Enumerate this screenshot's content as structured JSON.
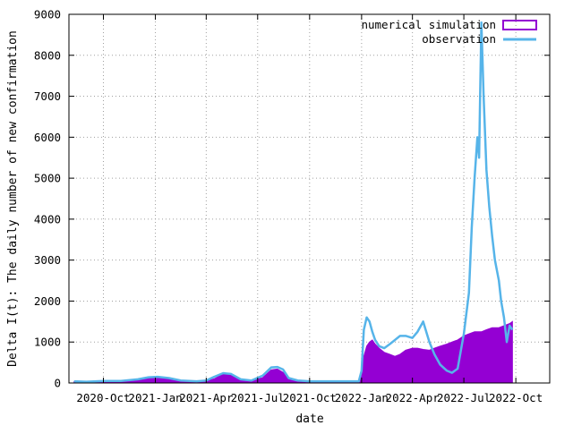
{
  "chart_data": {
    "type": "area",
    "title": "",
    "xlabel": "date",
    "ylabel": "Delta I(t): The daily number of new confirmation",
    "ylim": [
      0,
      9000
    ],
    "xlim": [
      "2020-08-01",
      "2022-11-30"
    ],
    "grid": true,
    "legend_position": "top-right",
    "xticks": [
      {
        "date": "2020-10-01",
        "label": "2020-Oct"
      },
      {
        "date": "2021-01-01",
        "label": "2021-Jan"
      },
      {
        "date": "2021-04-01",
        "label": "2021-Apr"
      },
      {
        "date": "2021-07-01",
        "label": "2021-Jul"
      },
      {
        "date": "2021-10-01",
        "label": "2021-Oct"
      },
      {
        "date": "2022-01-01",
        "label": "2022-Jan"
      },
      {
        "date": "2022-04-01",
        "label": "2022-Apr"
      },
      {
        "date": "2022-07-01",
        "label": "2022-Jul"
      },
      {
        "date": "2022-10-01",
        "label": "2022-Oct"
      }
    ],
    "yticks": [
      0,
      1000,
      2000,
      3000,
      4000,
      5000,
      6000,
      7000,
      8000,
      9000
    ],
    "series": [
      {
        "name": "numerical simulation",
        "style": "filled-bars",
        "color": "#9400d3",
        "x": [
          "2020-08-10",
          "2020-09-01",
          "2020-10-01",
          "2020-11-01",
          "2020-12-01",
          "2020-12-20",
          "2021-01-05",
          "2021-01-25",
          "2021-02-15",
          "2021-03-15",
          "2021-04-01",
          "2021-04-15",
          "2021-05-01",
          "2021-05-15",
          "2021-06-01",
          "2021-06-20",
          "2021-07-10",
          "2021-07-25",
          "2021-08-05",
          "2021-08-15",
          "2021-08-25",
          "2021-09-10",
          "2021-10-01",
          "2021-11-01",
          "2021-12-01",
          "2021-12-27",
          "2022-01-01",
          "2022-01-05",
          "2022-01-10",
          "2022-01-15",
          "2022-01-20",
          "2022-01-25",
          "2022-02-01",
          "2022-02-10",
          "2022-02-20",
          "2022-03-01",
          "2022-03-10",
          "2022-03-20",
          "2022-04-01",
          "2022-04-10",
          "2022-04-20",
          "2022-05-01",
          "2022-05-10",
          "2022-05-20",
          "2022-06-01",
          "2022-06-10",
          "2022-06-20",
          "2022-07-01",
          "2022-07-10",
          "2022-07-20",
          "2022-08-01",
          "2022-08-10",
          "2022-08-20",
          "2022-09-01",
          "2022-09-10",
          "2022-09-20",
          "2022-09-25"
        ],
        "values": [
          30,
          30,
          40,
          40,
          60,
          120,
          130,
          110,
          60,
          40,
          50,
          100,
          220,
          200,
          80,
          60,
          130,
          320,
          340,
          260,
          120,
          60,
          40,
          40,
          40,
          40,
          200,
          650,
          900,
          1000,
          1050,
          950,
          850,
          750,
          700,
          650,
          700,
          800,
          850,
          850,
          820,
          800,
          850,
          900,
          950,
          1000,
          1050,
          1150,
          1200,
          1250,
          1250,
          1300,
          1350,
          1350,
          1400,
          1450,
          1500
        ]
      },
      {
        "name": "observation",
        "style": "line",
        "color": "#56b4e9",
        "x": [
          "2020-08-10",
          "2020-09-01",
          "2020-10-01",
          "2020-11-01",
          "2020-12-01",
          "2020-12-20",
          "2021-01-05",
          "2021-01-25",
          "2021-02-15",
          "2021-03-15",
          "2021-04-01",
          "2021-04-15",
          "2021-05-01",
          "2021-05-15",
          "2021-06-01",
          "2021-06-20",
          "2021-07-10",
          "2021-07-25",
          "2021-08-05",
          "2021-08-15",
          "2021-08-25",
          "2021-09-10",
          "2021-10-01",
          "2021-11-01",
          "2021-12-01",
          "2021-12-27",
          "2022-01-01",
          "2022-01-05",
          "2022-01-10",
          "2022-01-15",
          "2022-01-20",
          "2022-01-25",
          "2022-02-01",
          "2022-02-10",
          "2022-02-20",
          "2022-03-01",
          "2022-03-10",
          "2022-03-20",
          "2022-04-01",
          "2022-04-10",
          "2022-04-20",
          "2022-05-01",
          "2022-05-10",
          "2022-05-20",
          "2022-06-01",
          "2022-06-10",
          "2022-06-20",
          "2022-07-01",
          "2022-07-10",
          "2022-07-15",
          "2022-07-20",
          "2022-07-25",
          "2022-07-28",
          "2022-08-01",
          "2022-08-05",
          "2022-08-10",
          "2022-08-15",
          "2022-08-20",
          "2022-08-25",
          "2022-09-01",
          "2022-09-05",
          "2022-09-10",
          "2022-09-15",
          "2022-09-20",
          "2022-09-25"
        ],
        "values": [
          40,
          30,
          50,
          50,
          90,
          140,
          150,
          120,
          60,
          40,
          60,
          150,
          240,
          220,
          90,
          60,
          180,
          380,
          390,
          330,
          120,
          60,
          40,
          40,
          40,
          40,
          300,
          1300,
          1600,
          1500,
          1250,
          1050,
          900,
          850,
          950,
          1050,
          1150,
          1150,
          1100,
          1250,
          1500,
          1000,
          700,
          450,
          300,
          250,
          350,
          1200,
          2200,
          3800,
          5000,
          6000,
          5500,
          8800,
          7000,
          5200,
          4300,
          3600,
          3000,
          2500,
          2000,
          1600,
          1000,
          1400,
          1300
        ]
      }
    ]
  }
}
